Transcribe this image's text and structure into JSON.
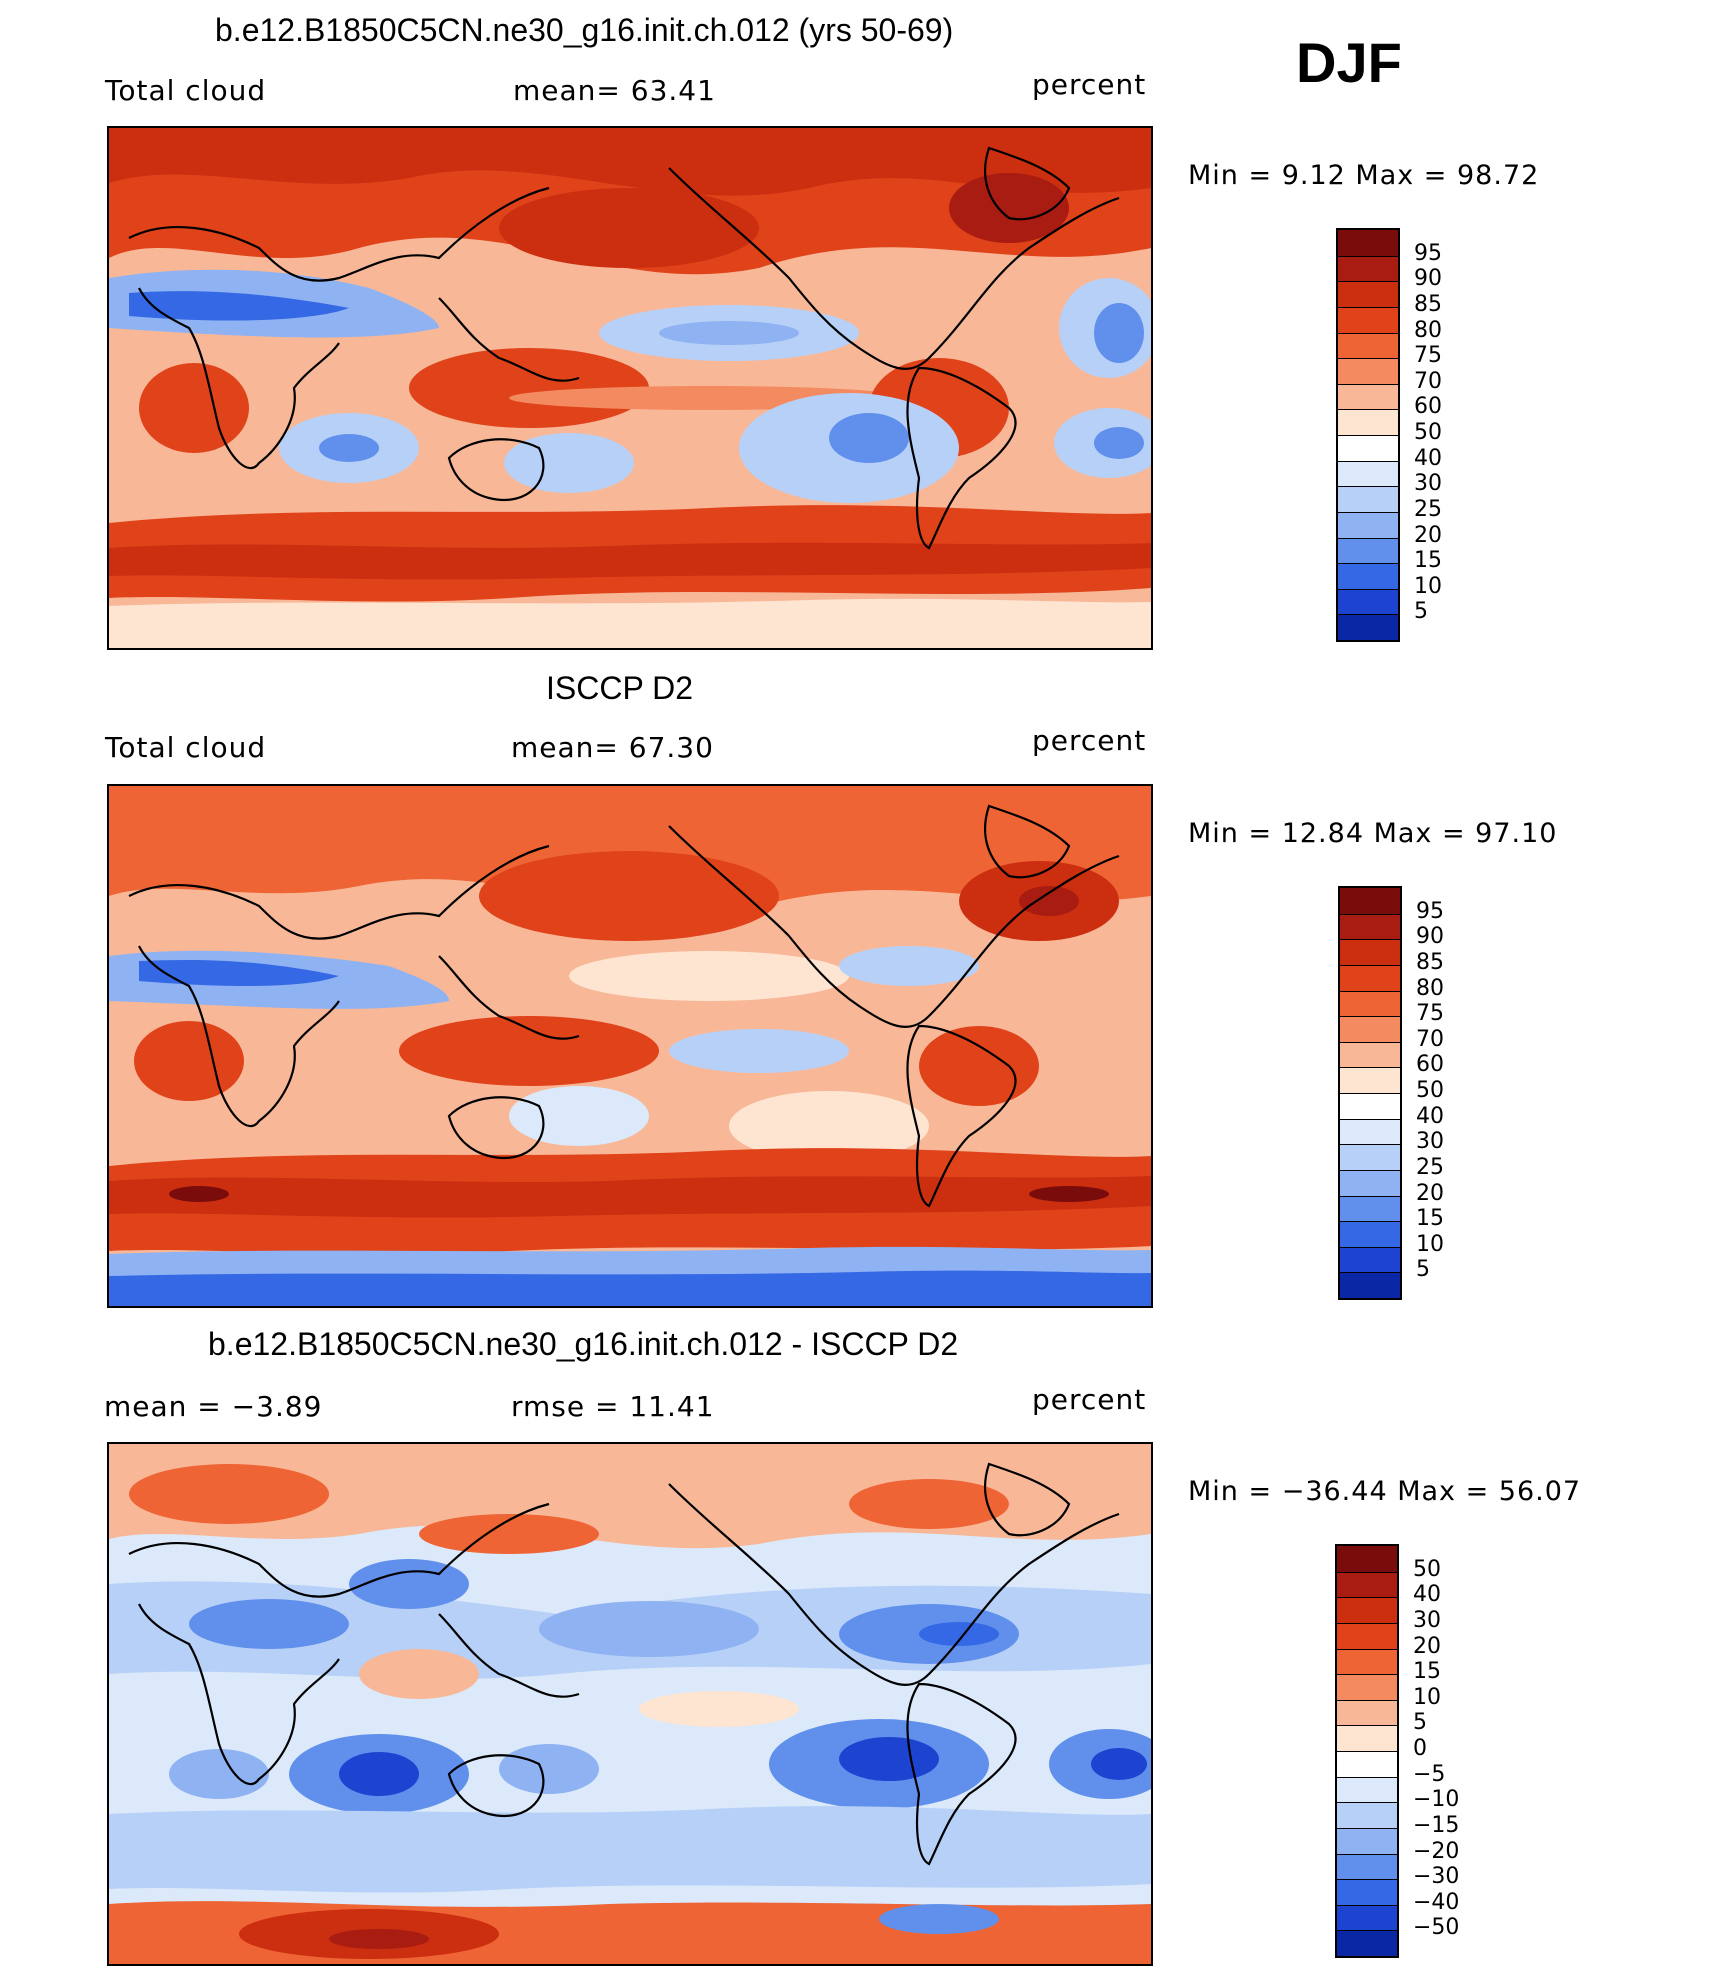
{
  "season": "DJF",
  "panels": [
    {
      "title": "b.e12.B1850C5CN.ne30_g16.init.ch.012 (yrs 50-69)",
      "left_label": "Total cloud",
      "center_label": "mean=   63.41",
      "right_label": "percent",
      "minmax": "Min =    9.12 Max =   98.72",
      "colorbar_labels": [
        "95",
        "90",
        "85",
        "80",
        "75",
        "70",
        "60",
        "50",
        "40",
        "30",
        "25",
        "20",
        "15",
        "10",
        "5"
      ]
    },
    {
      "title": "ISCCP D2",
      "left_label": "Total cloud",
      "center_label": "mean=   67.30",
      "right_label": "percent",
      "minmax": "Min =   12.84 Max =   97.10",
      "colorbar_labels": [
        "95",
        "90",
        "85",
        "80",
        "75",
        "70",
        "60",
        "50",
        "40",
        "30",
        "25",
        "20",
        "15",
        "10",
        "5"
      ]
    },
    {
      "title": "b.e12.B1850C5CN.ne30_g16.init.ch.012 - ISCCP D2",
      "left_label": "mean =   −3.89",
      "center_label": "rmse =   11.41",
      "right_label": "percent",
      "minmax": "Min = −36.44 Max =   56.07",
      "colorbar_labels": [
        "50",
        "40",
        "30",
        "20",
        "15",
        "10",
        "5",
        "0",
        "−5",
        "−10",
        "−15",
        "−20",
        "−30",
        "−40",
        "−50"
      ]
    }
  ],
  "colors": {
    "scale": [
      "#7a0c0c",
      "#a81c12",
      "#cc2e10",
      "#e0421a",
      "#ee6434",
      "#f38a60",
      "#f8b898",
      "#fde5d2",
      "#ffffff",
      "#dbe9fa",
      "#b7d0f7",
      "#8fb2f2",
      "#6090ec",
      "#3568e4",
      "#1c44d0",
      "#0a28a6",
      "#061683"
    ]
  }
}
